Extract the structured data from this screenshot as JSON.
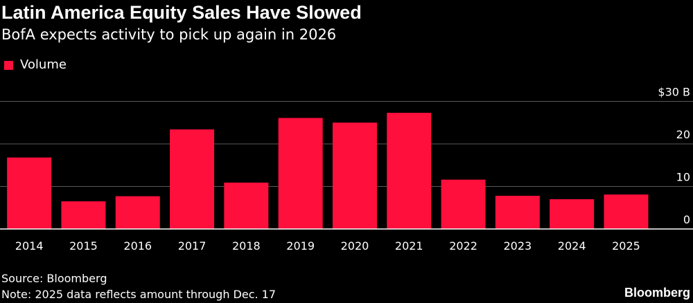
{
  "chart_data": {
    "type": "bar",
    "title": "Latin America Equity Sales Have Slowed",
    "subtitle": "BofA expects activity to pick up again in 2026",
    "legend": [
      {
        "name": "Volume",
        "color": "#ff0f3c"
      }
    ],
    "categories": [
      "2014",
      "2015",
      "2016",
      "2017",
      "2018",
      "2019",
      "2020",
      "2021",
      "2022",
      "2023",
      "2024",
      "2025"
    ],
    "series": [
      {
        "name": "Volume",
        "color": "#ff0f3c",
        "values": [
          16.8,
          6.5,
          7.7,
          23.4,
          10.9,
          26.1,
          25.0,
          27.3,
          11.6,
          7.8,
          7.0,
          8.1
        ]
      }
    ],
    "ylim": [
      0,
      30
    ],
    "yticks": [
      {
        "value": 30,
        "label": "$30 B"
      },
      {
        "value": 20,
        "label": "20"
      },
      {
        "value": 10,
        "label": "10"
      },
      {
        "value": 0,
        "label": "0"
      }
    ],
    "grid": true,
    "legend_position": "top-left",
    "axis_position": "right"
  },
  "footer": {
    "source": "Source: Bloomberg",
    "note": "Note: 2025 data reflects amount through Dec. 17",
    "brand": "Bloomberg"
  }
}
